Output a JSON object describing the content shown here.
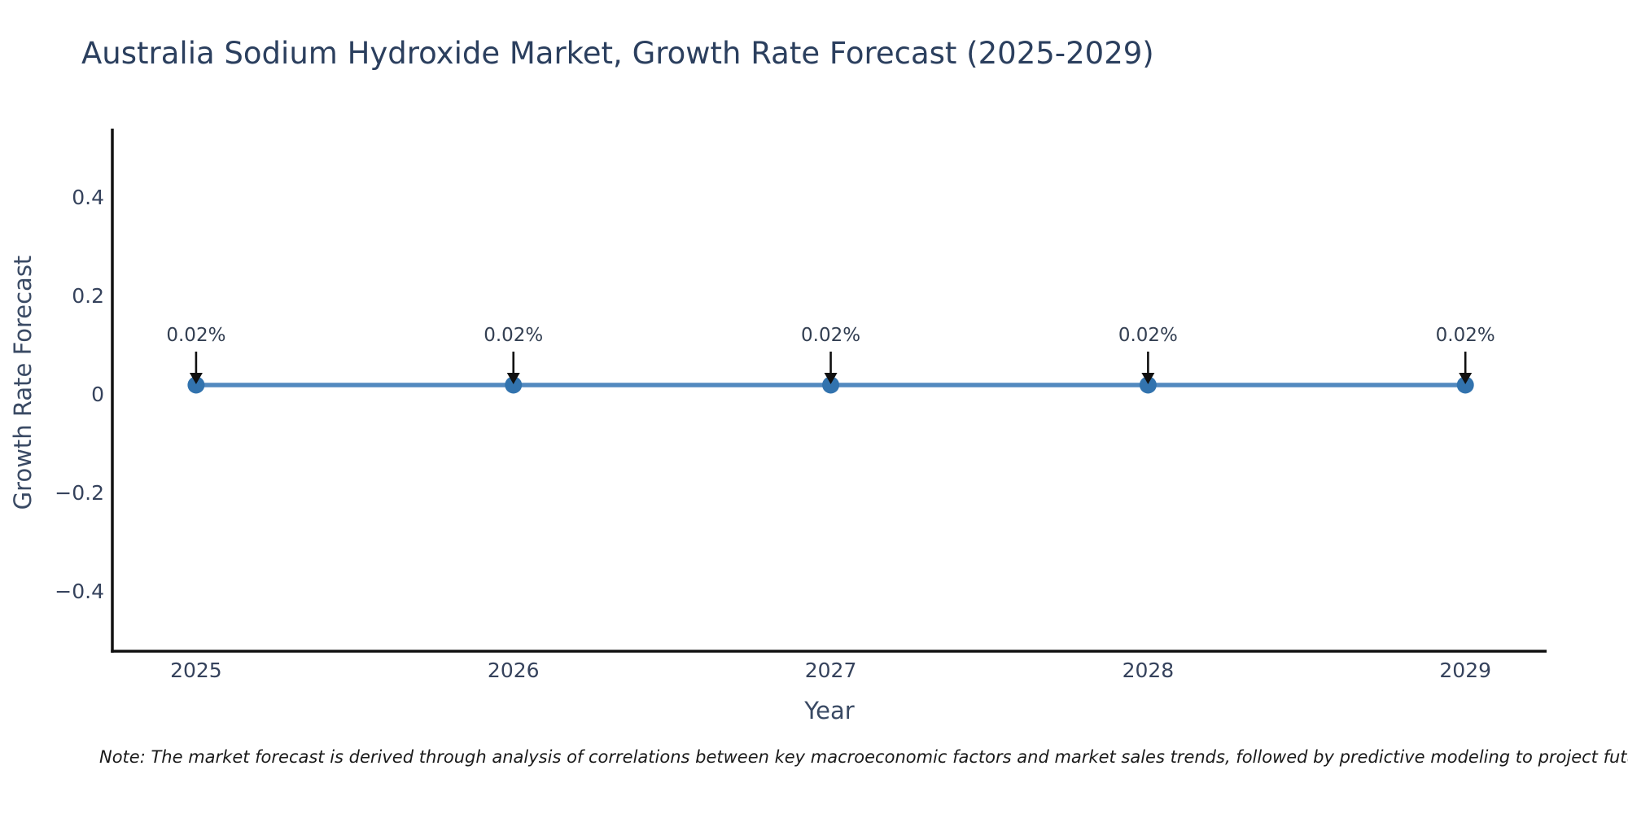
{
  "figure": {
    "title": "Australia Sodium Hydroxide Market, Growth Rate Forecast (2025-2029)",
    "note": "Note: The market forecast is derived through analysis of correlations between key macroeconomic factors and market sales trends, followed by predictive modeling to project future sa"
  },
  "chart_data": {
    "type": "line",
    "title": "Australia Sodium Hydroxide Market, Growth Rate Forecast (2025-2029)",
    "xlabel": "Year",
    "ylabel": "Growth Rate Forecast",
    "x": [
      2025,
      2026,
      2027,
      2028,
      2029
    ],
    "series": [
      {
        "name": "Growth Rate Forecast",
        "values": [
          0.02,
          0.02,
          0.02,
          0.02,
          0.02
        ]
      }
    ],
    "point_labels": [
      "0.02%",
      "0.02%",
      "0.02%",
      "0.02%",
      "0.02%"
    ],
    "xtick_labels": [
      "2025",
      "2026",
      "2027",
      "2028",
      "2029"
    ],
    "ytick_values": [
      0.4,
      0.2,
      0,
      -0.2,
      -0.4
    ],
    "ytick_labels": [
      "0.4",
      "0.2",
      "0",
      "−0.2",
      "−0.4"
    ],
    "xlim": [
      2024.736,
      2029.256
    ],
    "ylim": [
      -0.52,
      0.54
    ],
    "grid": false,
    "legend": null,
    "annotation_arrows": true,
    "colors": {
      "line": "#5289bf",
      "marker": "#3273ae",
      "arrow": "#111111",
      "spine": "#111111",
      "title_text": "#2b3f5e",
      "tick_text": "#35425c",
      "axis_label_text": "#3a4a64",
      "annotation_text": "#333f52",
      "note_text": "#1a1a1a",
      "background": "#ffffff"
    }
  }
}
